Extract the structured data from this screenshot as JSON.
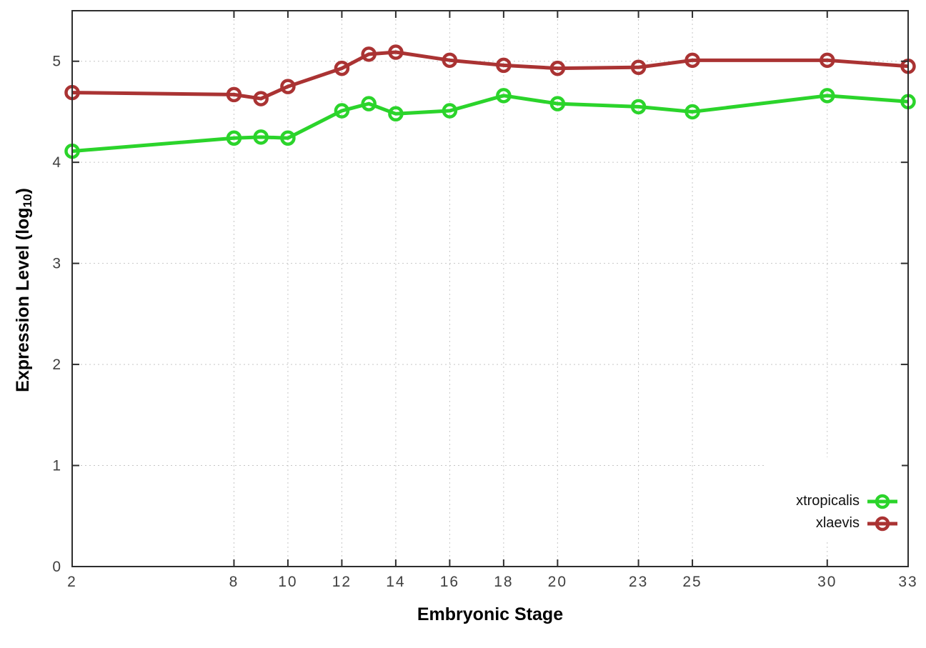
{
  "figure": {
    "background": "#ffffff",
    "border_color": "#2e2e2e",
    "grid_color": "#c6c6c6",
    "tick_label_color": "#404040"
  },
  "chart_data": {
    "type": "line",
    "title": "",
    "xlabel": "Embryonic Stage",
    "ylabel_pre": "Expression Level (log",
    "ylabel_sub": "10",
    "ylabel_post": ")",
    "x": [
      2,
      8,
      9,
      10,
      12,
      13,
      14,
      16,
      18,
      20,
      23,
      25,
      30,
      33
    ],
    "x_ticks": [
      2,
      8,
      10,
      12,
      14,
      16,
      18,
      20,
      23,
      25,
      30,
      33
    ],
    "y_ticks": [
      0,
      1,
      2,
      3,
      4,
      5
    ],
    "xlim": [
      2,
      33
    ],
    "ylim": [
      0,
      5.5
    ],
    "grid": true,
    "legend_position": "bottom-right-inside",
    "series": [
      {
        "name": "xtropicalis",
        "color": "#2bd42b",
        "values": [
          4.11,
          4.24,
          4.25,
          4.24,
          4.51,
          4.58,
          4.48,
          4.51,
          4.66,
          4.58,
          4.55,
          4.5,
          4.66,
          4.6
        ]
      },
      {
        "name": "xlaevis",
        "color": "#aa3333",
        "values": [
          4.69,
          4.67,
          4.63,
          4.75,
          4.93,
          5.07,
          5.09,
          5.01,
          4.96,
          4.93,
          4.94,
          5.01,
          5.01,
          4.95
        ]
      }
    ]
  }
}
